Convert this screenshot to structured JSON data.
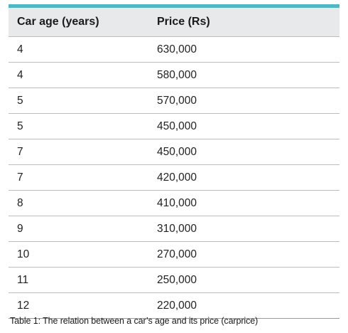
{
  "table": {
    "headers": {
      "age": "Car age (years)",
      "price": "Price (Rs)"
    },
    "rows": [
      {
        "age": "4",
        "price": "630,000"
      },
      {
        "age": "4",
        "price": "580,000"
      },
      {
        "age": "5",
        "price": "570,000"
      },
      {
        "age": "5",
        "price": "450,000"
      },
      {
        "age": "7",
        "price": "450,000"
      },
      {
        "age": "7",
        "price": "420,000"
      },
      {
        "age": "8",
        "price": "410,000"
      },
      {
        "age": "9",
        "price": "310,000"
      },
      {
        "age": "10",
        "price": "270,000"
      },
      {
        "age": "11",
        "price": "250,000"
      },
      {
        "age": "12",
        "price": "220,000"
      }
    ]
  },
  "caption": "Table 1: The relation between a car’s age and its price (carprice)",
  "colors": {
    "accent_rule": "#4fb6c2",
    "row_divider": "#8fd0d8",
    "header_background": "#e8e9ea"
  }
}
